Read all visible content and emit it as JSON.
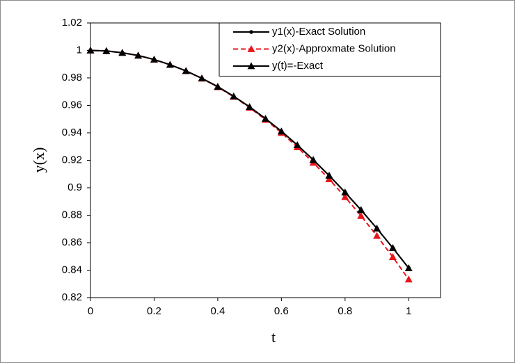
{
  "chart_data": {
    "type": "line",
    "x_label": "t",
    "y_label": "y(x)",
    "x": [
      0,
      0.05,
      0.1,
      0.15,
      0.2,
      0.25,
      0.3,
      0.35,
      0.4,
      0.45,
      0.5,
      0.55,
      0.6,
      0.65,
      0.7,
      0.75,
      0.8,
      0.85,
      0.9,
      0.95,
      1
    ],
    "series": [
      {
        "name": "y1(x)-Exact Solution",
        "color": "#000000",
        "marker": "circle",
        "dashed": false,
        "values": [
          1,
          0.9996,
          0.9983,
          0.9963,
          0.9934,
          0.9896,
          0.9851,
          0.9797,
          0.9736,
          0.9666,
          0.9589,
          0.9503,
          0.9411,
          0.9311,
          0.9203,
          0.9089,
          0.8967,
          0.8839,
          0.8704,
          0.8562,
          0.8415
        ]
      },
      {
        "name": "y2(x)-Approxmate Solution",
        "color": "#e8141a",
        "marker": "triangle",
        "dashed": true,
        "values": [
          1,
          0.9996,
          0.9983,
          0.9963,
          0.9933,
          0.9896,
          0.985,
          0.9796,
          0.9733,
          0.9663,
          0.9583,
          0.9496,
          0.94,
          0.9296,
          0.9183,
          0.9063,
          0.8933,
          0.8796,
          0.865,
          0.8496,
          0.8333
        ]
      },
      {
        "name": "y(t)=-Exact",
        "color": "#000000",
        "marker": "triangle",
        "dashed": false,
        "values": [
          1,
          0.9996,
          0.9983,
          0.9963,
          0.9934,
          0.9896,
          0.9851,
          0.9797,
          0.9736,
          0.9666,
          0.9589,
          0.9503,
          0.9411,
          0.9311,
          0.9203,
          0.9089,
          0.8967,
          0.8839,
          0.8704,
          0.8562,
          0.8415
        ]
      }
    ],
    "xlim": [
      0,
      1.1
    ],
    "xticks": [
      0,
      0.2,
      0.4,
      0.6,
      0.8,
      1
    ],
    "ylim": [
      0.82,
      1.02
    ],
    "yticks": [
      0.82,
      0.84,
      0.86,
      0.88,
      0.9,
      0.92,
      0.94,
      0.96,
      0.98,
      1,
      1.02
    ],
    "legend": "upper right",
    "grid": false
  }
}
